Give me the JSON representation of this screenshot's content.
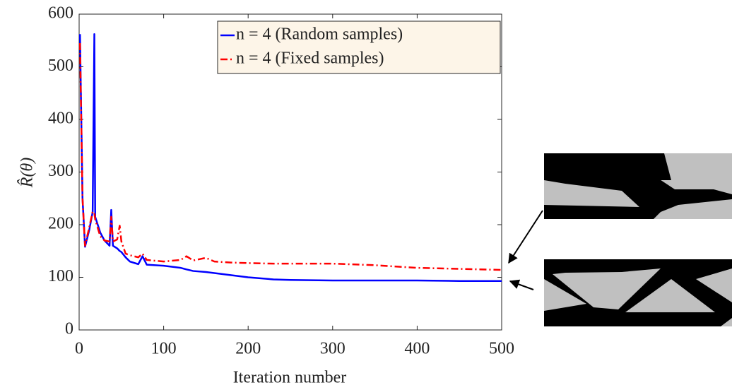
{
  "chart_data": {
    "type": "line",
    "x_label": "Iteration number",
    "y_label": "R̂(θ)",
    "x": [
      1,
      4,
      7,
      12,
      16,
      18,
      19,
      25,
      30,
      36,
      38,
      40,
      45,
      48,
      50,
      55,
      60,
      70,
      75,
      80,
      100,
      120,
      127,
      135,
      150,
      160,
      180,
      200,
      230,
      250,
      300,
      350,
      400,
      450,
      500
    ],
    "series": [
      {
        "name": "n = 4 (Random samples)",
        "color": "#0000ff",
        "linestyle": "solid",
        "values": [
          562,
          250,
          158,
          190,
          224,
          562,
          215,
          185,
          170,
          160,
          228,
          160,
          155,
          150,
          148,
          138,
          130,
          125,
          140,
          124,
          122,
          118,
          115,
          112,
          110,
          108,
          104,
          100,
          96,
          95,
          94,
          94,
          94,
          93,
          93
        ]
      },
      {
        "name": "n = 4 (Fixed samples)",
        "color": "#ff0000",
        "linestyle": "dashdot",
        "values": [
          545,
          250,
          160,
          195,
          225,
          222,
          210,
          178,
          170,
          168,
          215,
          168,
          172,
          198,
          168,
          145,
          142,
          138,
          145,
          133,
          130,
          133,
          140,
          132,
          137,
          130,
          128,
          127,
          126,
          126,
          126,
          123,
          118,
          116,
          114
        ]
      }
    ],
    "xlim": [
      0,
      500
    ],
    "xticks": [
      0,
      100,
      200,
      300,
      400,
      500
    ],
    "ylim": [
      0,
      600
    ],
    "yticks": [
      0,
      100,
      200,
      300,
      400,
      500,
      600
    ],
    "grid": false,
    "legend": "upper right"
  }
}
